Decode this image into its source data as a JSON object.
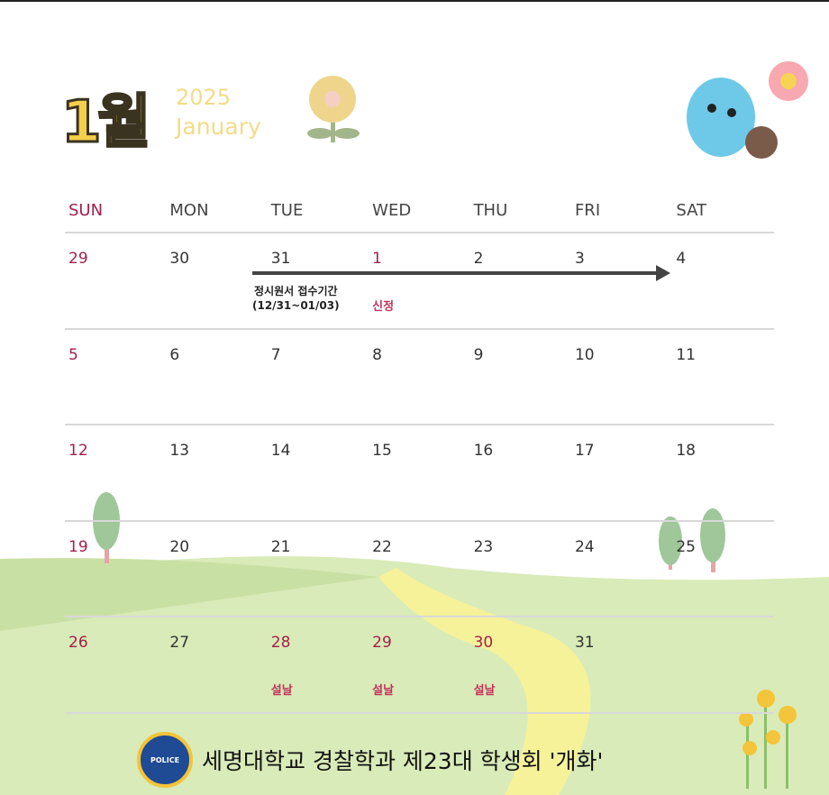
{
  "header": {
    "month_kr": "1월",
    "year": "2025",
    "month_en": "January"
  },
  "weekdays": [
    "SUN",
    "MON",
    "TUE",
    "WED",
    "THU",
    "FRI",
    "SAT"
  ],
  "weeks": [
    [
      {
        "d": "29",
        "red": true
      },
      {
        "d": "30"
      },
      {
        "d": "31"
      },
      {
        "d": "1",
        "red": true,
        "ev": "신정"
      },
      {
        "d": "2"
      },
      {
        "d": "3"
      },
      {
        "d": "4"
      }
    ],
    [
      {
        "d": "5",
        "red": true
      },
      {
        "d": "6"
      },
      {
        "d": "7"
      },
      {
        "d": "8"
      },
      {
        "d": "9"
      },
      {
        "d": "10"
      },
      {
        "d": "11"
      }
    ],
    [
      {
        "d": "12",
        "red": true
      },
      {
        "d": "13"
      },
      {
        "d": "14"
      },
      {
        "d": "15"
      },
      {
        "d": "16"
      },
      {
        "d": "17"
      },
      {
        "d": "18"
      }
    ],
    [
      {
        "d": "19",
        "red": true
      },
      {
        "d": "20"
      },
      {
        "d": "21"
      },
      {
        "d": "22"
      },
      {
        "d": "23"
      },
      {
        "d": "24"
      },
      {
        "d": "25"
      }
    ],
    [
      {
        "d": "26",
        "red": true
      },
      {
        "d": "27"
      },
      {
        "d": "28",
        "red": true,
        "ev": "설날"
      },
      {
        "d": "29",
        "red": true,
        "ev": "설날"
      },
      {
        "d": "30",
        "red": true,
        "ev": "설날"
      },
      {
        "d": "31"
      },
      {
        "d": ""
      }
    ]
  ],
  "range_event": {
    "title": "정시원서 접수기간",
    "dates": "(12/31~01/03)"
  },
  "footer": {
    "text": "세명대학교 경찰학과 제23대 학생회 '개화'",
    "badge": "POLICE"
  },
  "colors": {
    "holiday": "#a3204a",
    "accent": "#f4cf4c",
    "hill": "#d6eab2"
  }
}
